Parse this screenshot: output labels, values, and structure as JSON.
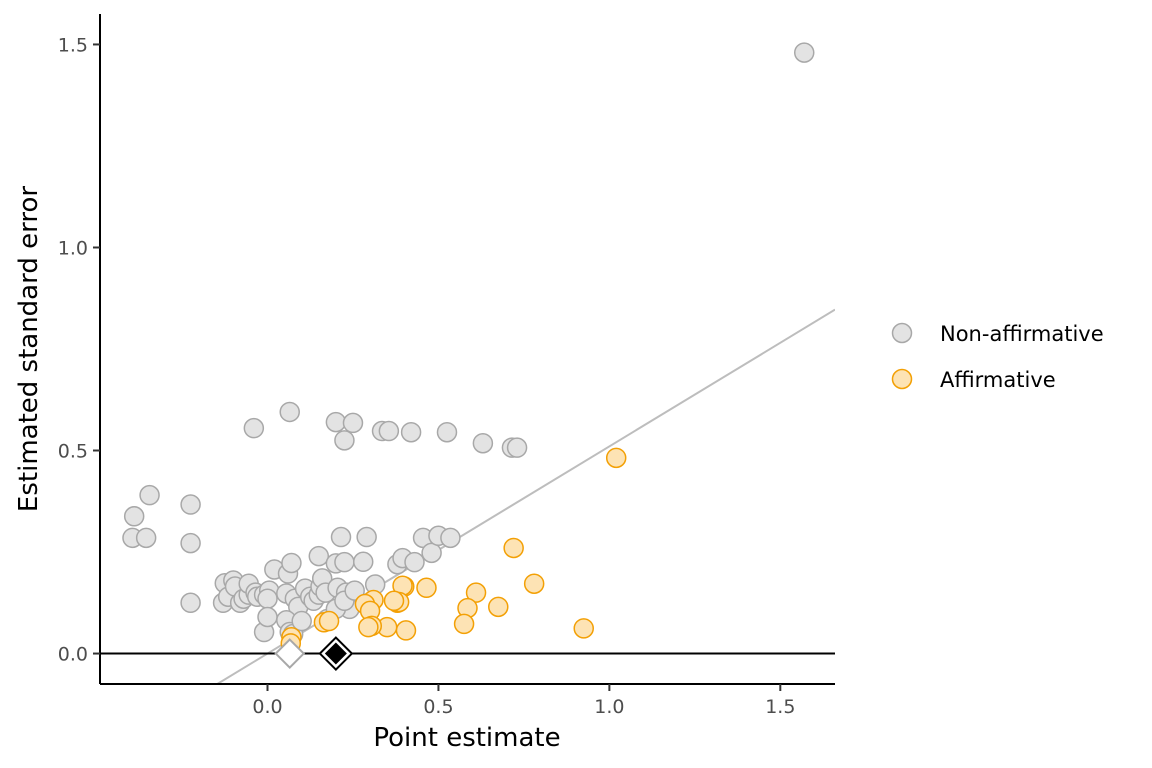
{
  "chart_data": {
    "type": "scatter",
    "title": "",
    "xlabel": "Point estimate",
    "ylabel": "Estimated standard error",
    "xlim": [
      -0.49,
      1.66
    ],
    "ylim": [
      -0.075,
      1.575
    ],
    "x_ticks": [
      0.0,
      0.5,
      1.0,
      1.5
    ],
    "x_tick_labels": [
      "0.0",
      "0.5",
      "1.0",
      "1.5"
    ],
    "y_ticks": [
      0.0,
      0.5,
      1.0,
      1.5
    ],
    "y_tick_labels": [
      "0.0",
      "0.5",
      "1.0",
      "1.5"
    ],
    "grid": false,
    "hline_y": 0,
    "reference_line": {
      "slope": 0.5102,
      "intercept": 0,
      "color": "#bdbdbd"
    },
    "legend_position": "right",
    "series": [
      {
        "name": "Non-affirmative",
        "fill": "#e3e3e3",
        "stroke": "#a8a8a8",
        "points": [
          [
            1.57,
            1.48
          ],
          [
            0.065,
            0.595
          ],
          [
            -0.04,
            0.555
          ],
          [
            0.2,
            0.57
          ],
          [
            0.25,
            0.568
          ],
          [
            0.225,
            0.525
          ],
          [
            0.335,
            0.548
          ],
          [
            0.355,
            0.548
          ],
          [
            0.42,
            0.545
          ],
          [
            0.525,
            0.545
          ],
          [
            0.63,
            0.518
          ],
          [
            0.715,
            0.507
          ],
          [
            0.73,
            0.507
          ],
          [
            -0.345,
            0.39
          ],
          [
            -0.39,
            0.338
          ],
          [
            -0.395,
            0.285
          ],
          [
            -0.355,
            0.285
          ],
          [
            -0.225,
            0.367
          ],
          [
            -0.225,
            0.272
          ],
          [
            -0.225,
            0.125
          ],
          [
            -0.125,
            0.173
          ],
          [
            -0.13,
            0.125
          ],
          [
            -0.1,
            0.18
          ],
          [
            -0.115,
            0.14
          ],
          [
            -0.095,
            0.165
          ],
          [
            -0.08,
            0.125
          ],
          [
            -0.07,
            0.135
          ],
          [
            -0.055,
            0.145
          ],
          [
            -0.055,
            0.172
          ],
          [
            -0.035,
            0.15
          ],
          [
            -0.03,
            0.14
          ],
          [
            -0.01,
            0.145
          ],
          [
            0.005,
            0.155
          ],
          [
            0.0,
            0.135
          ],
          [
            -0.01,
            0.053
          ],
          [
            0.0,
            0.09
          ],
          [
            0.02,
            0.207
          ],
          [
            0.055,
            0.148
          ],
          [
            0.06,
            0.197
          ],
          [
            0.07,
            0.223
          ],
          [
            0.08,
            0.135
          ],
          [
            0.09,
            0.115
          ],
          [
            0.055,
            0.082
          ],
          [
            0.065,
            0.053
          ],
          [
            0.075,
            0.048
          ],
          [
            0.1,
            0.08
          ],
          [
            0.11,
            0.16
          ],
          [
            0.125,
            0.14
          ],
          [
            0.135,
            0.13
          ],
          [
            0.15,
            0.145
          ],
          [
            0.155,
            0.165
          ],
          [
            0.16,
            0.185
          ],
          [
            0.17,
            0.15
          ],
          [
            0.15,
            0.24
          ],
          [
            0.175,
            0.085
          ],
          [
            0.2,
            0.222
          ],
          [
            0.205,
            0.162
          ],
          [
            0.215,
            0.287
          ],
          [
            0.225,
            0.225
          ],
          [
            0.23,
            0.15
          ],
          [
            0.24,
            0.11
          ],
          [
            0.2,
            0.11
          ],
          [
            0.225,
            0.13
          ],
          [
            0.255,
            0.155
          ],
          [
            0.28,
            0.226
          ],
          [
            0.29,
            0.287
          ],
          [
            0.315,
            0.17
          ],
          [
            0.38,
            0.22
          ],
          [
            0.395,
            0.235
          ],
          [
            0.43,
            0.225
          ],
          [
            0.455,
            0.285
          ],
          [
            0.48,
            0.248
          ],
          [
            0.5,
            0.29
          ],
          [
            0.535,
            0.285
          ]
        ]
      },
      {
        "name": "Affirmative",
        "fill": "#fde3b4",
        "stroke": "#f3a005",
        "points": [
          [
            1.02,
            0.482
          ],
          [
            0.72,
            0.26
          ],
          [
            0.78,
            0.172
          ],
          [
            0.925,
            0.062
          ],
          [
            0.465,
            0.162
          ],
          [
            0.4,
            0.165
          ],
          [
            0.395,
            0.167
          ],
          [
            0.61,
            0.15
          ],
          [
            0.585,
            0.112
          ],
          [
            0.675,
            0.115
          ],
          [
            0.575,
            0.073
          ],
          [
            0.405,
            0.057
          ],
          [
            0.38,
            0.125
          ],
          [
            0.385,
            0.127
          ],
          [
            0.37,
            0.13
          ],
          [
            0.35,
            0.065
          ],
          [
            0.31,
            0.132
          ],
          [
            0.285,
            0.122
          ],
          [
            0.3,
            0.105
          ],
          [
            0.305,
            0.068
          ],
          [
            0.295,
            0.065
          ],
          [
            0.165,
            0.077
          ],
          [
            0.18,
            0.08
          ],
          [
            0.07,
            0.04
          ],
          [
            0.068,
            0.025
          ]
        ]
      }
    ],
    "markers": [
      {
        "name": "affirmative-estimate",
        "x": 0.2,
        "y": 0,
        "shape": "diamond",
        "fill": "#000000",
        "stroke": "#000000"
      },
      {
        "name": "non-affirmative-estimate",
        "x": 0.065,
        "y": 0,
        "shape": "diamond",
        "fill": "#ffffff",
        "stroke": "#a8a8a8"
      }
    ]
  }
}
